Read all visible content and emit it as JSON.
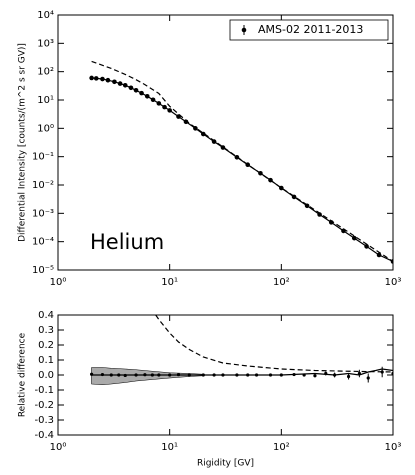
{
  "chart_data": [
    {
      "type": "line",
      "xlog": true,
      "ylog": true,
      "ylabel": "Differential Intensity [counts/(m^2 s sr GV)]",
      "annotation": "Helium",
      "legend": "upper right",
      "xlim": [
        1,
        1000
      ],
      "xticks": [
        {
          "value": 1,
          "label": "10⁰"
        },
        {
          "value": 10,
          "label": "10¹"
        },
        {
          "value": 100,
          "label": "10²"
        },
        {
          "value": 1000,
          "label": "10³"
        }
      ],
      "ylim": [
        1e-05,
        10000
      ],
      "yticks": [
        {
          "value": 1e-05,
          "label": "10⁻⁵"
        },
        {
          "value": 0.0001,
          "label": "10⁻⁴"
        },
        {
          "value": 0.001,
          "label": "10⁻³"
        },
        {
          "value": 0.01,
          "label": "10⁻²"
        },
        {
          "value": 0.1,
          "label": "10⁻¹"
        },
        {
          "value": 1,
          "label": "10⁰"
        },
        {
          "value": 10,
          "label": "10¹"
        },
        {
          "value": 100,
          "label": "10²"
        },
        {
          "value": 1000,
          "label": "10³"
        },
        {
          "value": 10000,
          "label": "10⁴"
        }
      ],
      "series": [
        {
          "name": "AMS-02 2011-2013",
          "color": "#000000",
          "marker": true,
          "dash": false,
          "x": [
            2,
            2.2,
            2.5,
            2.8,
            3.2,
            3.6,
            4,
            4.5,
            5,
            5.6,
            6.3,
            7.1,
            8,
            9,
            10,
            12,
            14,
            17,
            20,
            25,
            30,
            40,
            50,
            65,
            80,
            100,
            130,
            170,
            220,
            280,
            360,
            450,
            580,
            750,
            1000
          ],
          "values": [
            60,
            58,
            55,
            50,
            44,
            38,
            33,
            27,
            22,
            17.5,
            13.5,
            10.2,
            7.6,
            5.6,
            4.3,
            2.6,
            1.7,
            1.0,
            0.63,
            0.34,
            0.21,
            0.095,
            0.052,
            0.026,
            0.0148,
            0.0078,
            0.0038,
            0.00185,
            0.00091,
            0.00048,
            0.00024,
            0.000133,
            6.8e-05,
            3.4e-05,
            2e-05
          ]
        },
        {
          "color": "#000000",
          "marker": false,
          "dash": true,
          "x": [
            2,
            3,
            4,
            5,
            6,
            8,
            10,
            15,
            20,
            30,
            50,
            100,
            1000
          ],
          "values": [
            230,
            130,
            80,
            52,
            35,
            17,
            6.0,
            1.5,
            0.68,
            0.22,
            0.053,
            0.0079,
            2e-05
          ]
        }
      ]
    },
    {
      "type": "errorbar",
      "xlog": true,
      "ylog": false,
      "xlabel": "Rigidity [GV]",
      "ylabel": "Relative difference",
      "xlim": [
        1,
        1000
      ],
      "xticks": [
        {
          "value": 1,
          "label": "10⁰"
        },
        {
          "value": 10,
          "label": "10¹"
        },
        {
          "value": 100,
          "label": "10²"
        },
        {
          "value": 1000,
          "label": "10³"
        }
      ],
      "ylim": [
        -0.4,
        0.4
      ],
      "yticks": [
        -0.4,
        -0.3,
        -0.2,
        -0.1,
        {
          "value": 0,
          "label": "0.0"
        },
        0.1,
        0.2,
        0.3,
        0.4
      ],
      "band": {
        "color": "#aaaaaa",
        "x": [
          2,
          2.5,
          3,
          4,
          5,
          7,
          10,
          15,
          20
        ],
        "upper": [
          0.05,
          0.05,
          0.045,
          0.04,
          0.035,
          0.025,
          0.015,
          0.01,
          0.005
        ],
        "lower": [
          -0.06,
          -0.065,
          -0.06,
          -0.05,
          -0.04,
          -0.03,
          -0.02,
          -0.01,
          -0.005
        ]
      },
      "series": [
        {
          "color": "#000000",
          "marker": true,
          "dash": false,
          "line": false,
          "x": [
            2,
            2.5,
            3,
            3.5,
            4,
            5,
            6,
            7,
            8,
            10,
            12,
            15,
            20,
            25,
            30,
            40,
            50,
            60,
            80,
            100,
            130,
            160,
            200,
            250,
            300,
            400,
            500,
            600,
            800,
            1000
          ],
          "values": [
            0.005,
            0.003,
            0,
            0,
            -0.003,
            0,
            0.002,
            0,
            0,
            0,
            0.002,
            0,
            0,
            0,
            0,
            0,
            0,
            0,
            0,
            0,
            0.003,
            0,
            -0.005,
            0.01,
            0,
            -0.01,
            0.01,
            -0.02,
            0.02,
            0.01
          ],
          "errors": [
            0.004,
            0.004,
            0.004,
            0.004,
            0.004,
            0.004,
            0.004,
            0.004,
            0.004,
            0.004,
            0.004,
            0.004,
            0.004,
            0.004,
            0.004,
            0.004,
            0.004,
            0.004,
            0.004,
            0.004,
            0.006,
            0.008,
            0.01,
            0.013,
            0.016,
            0.02,
            0.025,
            0.03,
            0.035,
            0.04
          ]
        },
        {
          "color": "#000000",
          "marker": false,
          "dash": false,
          "line": true,
          "x": [
            2,
            5,
            10,
            30,
            100,
            200,
            300,
            400,
            500,
            600,
            700,
            800,
            1000
          ],
          "values": [
            0,
            0,
            0,
            0,
            0,
            0.01,
            0,
            0.01,
            0,
            0.02,
            0.03,
            0.04,
            0.03
          ]
        },
        {
          "color": "#000000",
          "marker": false,
          "dash": true,
          "line": true,
          "x": [
            7.5,
            8,
            10,
            12,
            15,
            20,
            30,
            50,
            100,
            200,
            400,
            1000
          ],
          "values": [
            0.4,
            0.37,
            0.28,
            0.22,
            0.17,
            0.12,
            0.08,
            0.06,
            0.04,
            0.03,
            0.025,
            0.02
          ]
        }
      ]
    }
  ]
}
